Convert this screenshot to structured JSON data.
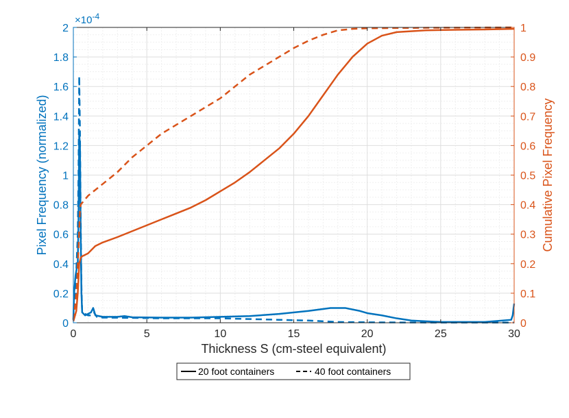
{
  "chart_data": {
    "type": "line",
    "xlabel": "Thickness S (cm-steel equivalent)",
    "ylabel_left": "Pixel Frequency (normalized)",
    "ylabel_right": "Cumulative Pixel Frequency",
    "left_exponent_label": "×10",
    "left_exponent_power": "-4",
    "xlim": [
      0,
      30
    ],
    "ylim_left": [
      0,
      2
    ],
    "ylim_right": [
      0,
      1
    ],
    "x_ticks": [
      "0",
      "5",
      "10",
      "15",
      "20",
      "25",
      "30"
    ],
    "y_left_ticks": [
      "0",
      "0.2",
      "0.4",
      "0.6",
      "0.8",
      "1",
      "1.2",
      "1.4",
      "1.6",
      "1.8",
      "2"
    ],
    "y_right_ticks": [
      "0",
      "0.1",
      "0.2",
      "0.3",
      "0.4",
      "0.5",
      "0.6",
      "0.7",
      "0.8",
      "0.9",
      "1"
    ],
    "grid": true,
    "legend_position": "bottom-outside",
    "colors": {
      "left_axis": "#0072BD",
      "right_axis": "#D95319",
      "axes": "#262626",
      "grid": "#e6e6e6"
    },
    "series": [
      {
        "name": "20 foot containers",
        "axis": "left",
        "style": "solid",
        "color": "#0072BD",
        "points": [
          [
            0,
            0.02
          ],
          [
            0.05,
            0.2
          ],
          [
            0.15,
            0.32
          ],
          [
            0.25,
            0.38
          ],
          [
            0.3,
            0.4
          ],
          [
            0.35,
            0.7
          ],
          [
            0.4,
            1.28
          ],
          [
            0.45,
            1.2
          ],
          [
            0.5,
            0.6
          ],
          [
            0.55,
            0.2
          ],
          [
            0.6,
            0.07
          ],
          [
            0.8,
            0.05
          ],
          [
            1,
            0.06
          ],
          [
            1.2,
            0.07
          ],
          [
            1.35,
            0.1
          ],
          [
            1.5,
            0.05
          ],
          [
            2,
            0.04
          ],
          [
            3,
            0.04
          ],
          [
            3.5,
            0.045
          ],
          [
            4,
            0.037
          ],
          [
            6,
            0.035
          ],
          [
            8,
            0.035
          ],
          [
            10,
            0.04
          ],
          [
            12,
            0.045
          ],
          [
            14,
            0.06
          ],
          [
            16,
            0.08
          ],
          [
            17.5,
            0.1
          ],
          [
            18.5,
            0.1
          ],
          [
            19.5,
            0.08
          ],
          [
            20,
            0.065
          ],
          [
            21,
            0.05
          ],
          [
            22,
            0.03
          ],
          [
            23,
            0.015
          ],
          [
            25,
            0.005
          ],
          [
            28,
            0.005
          ],
          [
            29.8,
            0.02
          ],
          [
            29.9,
            0.05
          ],
          [
            30,
            0.13
          ]
        ]
      },
      {
        "name": "40 foot containers",
        "axis": "left",
        "style": "dashed",
        "color": "#0072BD",
        "points": [
          [
            0,
            0.02
          ],
          [
            0.1,
            0.2
          ],
          [
            0.2,
            0.35
          ],
          [
            0.3,
            0.6
          ],
          [
            0.35,
            1.0
          ],
          [
            0.4,
            1.67
          ],
          [
            0.45,
            1.3
          ],
          [
            0.5,
            0.7
          ],
          [
            0.55,
            0.25
          ],
          [
            0.6,
            0.07
          ],
          [
            1,
            0.05
          ],
          [
            1.2,
            0.05
          ],
          [
            1.4,
            0.07
          ],
          [
            1.6,
            0.04
          ],
          [
            2,
            0.035
          ],
          [
            4,
            0.033
          ],
          [
            6,
            0.03
          ],
          [
            8,
            0.03
          ],
          [
            10,
            0.03
          ],
          [
            12,
            0.025
          ],
          [
            14,
            0.02
          ],
          [
            16,
            0.015
          ],
          [
            18,
            0.005
          ],
          [
            20,
            0.003
          ],
          [
            22,
            0.002
          ],
          [
            25,
            0.001
          ],
          [
            30,
            0.001
          ]
        ]
      },
      {
        "name": "20 foot containers",
        "axis": "right",
        "style": "solid",
        "color": "#D95319",
        "points": [
          [
            0,
            0.005
          ],
          [
            0.2,
            0.04
          ],
          [
            0.3,
            0.1
          ],
          [
            0.4,
            0.2
          ],
          [
            0.5,
            0.22
          ],
          [
            0.6,
            0.225
          ],
          [
            0.8,
            0.23
          ],
          [
            1,
            0.235
          ],
          [
            1.3,
            0.25
          ],
          [
            1.5,
            0.26
          ],
          [
            2,
            0.272
          ],
          [
            3,
            0.29
          ],
          [
            4,
            0.31
          ],
          [
            5,
            0.33
          ],
          [
            6,
            0.35
          ],
          [
            7,
            0.37
          ],
          [
            8,
            0.39
          ],
          [
            9,
            0.415
          ],
          [
            10,
            0.445
          ],
          [
            11,
            0.475
          ],
          [
            12,
            0.51
          ],
          [
            13,
            0.55
          ],
          [
            14,
            0.59
          ],
          [
            15,
            0.64
          ],
          [
            16,
            0.7
          ],
          [
            17,
            0.77
          ],
          [
            18,
            0.84
          ],
          [
            19,
            0.9
          ],
          [
            20,
            0.945
          ],
          [
            21,
            0.972
          ],
          [
            22,
            0.984
          ],
          [
            24,
            0.99
          ],
          [
            26,
            0.992
          ],
          [
            28,
            0.993
          ],
          [
            30,
            0.995
          ]
        ]
      },
      {
        "name": "40 foot containers",
        "axis": "right",
        "style": "dashed",
        "color": "#D95319",
        "points": [
          [
            0,
            0.01
          ],
          [
            0.15,
            0.07
          ],
          [
            0.25,
            0.13
          ],
          [
            0.35,
            0.25
          ],
          [
            0.45,
            0.38
          ],
          [
            0.5,
            0.4
          ],
          [
            1,
            0.43
          ],
          [
            2,
            0.47
          ],
          [
            3,
            0.51
          ],
          [
            4,
            0.56
          ],
          [
            5,
            0.6
          ],
          [
            6,
            0.64
          ],
          [
            7,
            0.67
          ],
          [
            8,
            0.7
          ],
          [
            9,
            0.73
          ],
          [
            10,
            0.76
          ],
          [
            11,
            0.8
          ],
          [
            12,
            0.84
          ],
          [
            13,
            0.87
          ],
          [
            14,
            0.9
          ],
          [
            15,
            0.93
          ],
          [
            16,
            0.955
          ],
          [
            17,
            0.975
          ],
          [
            18,
            0.99
          ],
          [
            19,
            0.995
          ],
          [
            20,
            0.997
          ],
          [
            22,
            0.998
          ],
          [
            25,
            0.999
          ],
          [
            30,
            1.0
          ]
        ]
      }
    ],
    "legend": [
      {
        "label": "20 foot containers",
        "style": "solid"
      },
      {
        "label": "40 foot containers",
        "style": "dashed"
      }
    ]
  }
}
